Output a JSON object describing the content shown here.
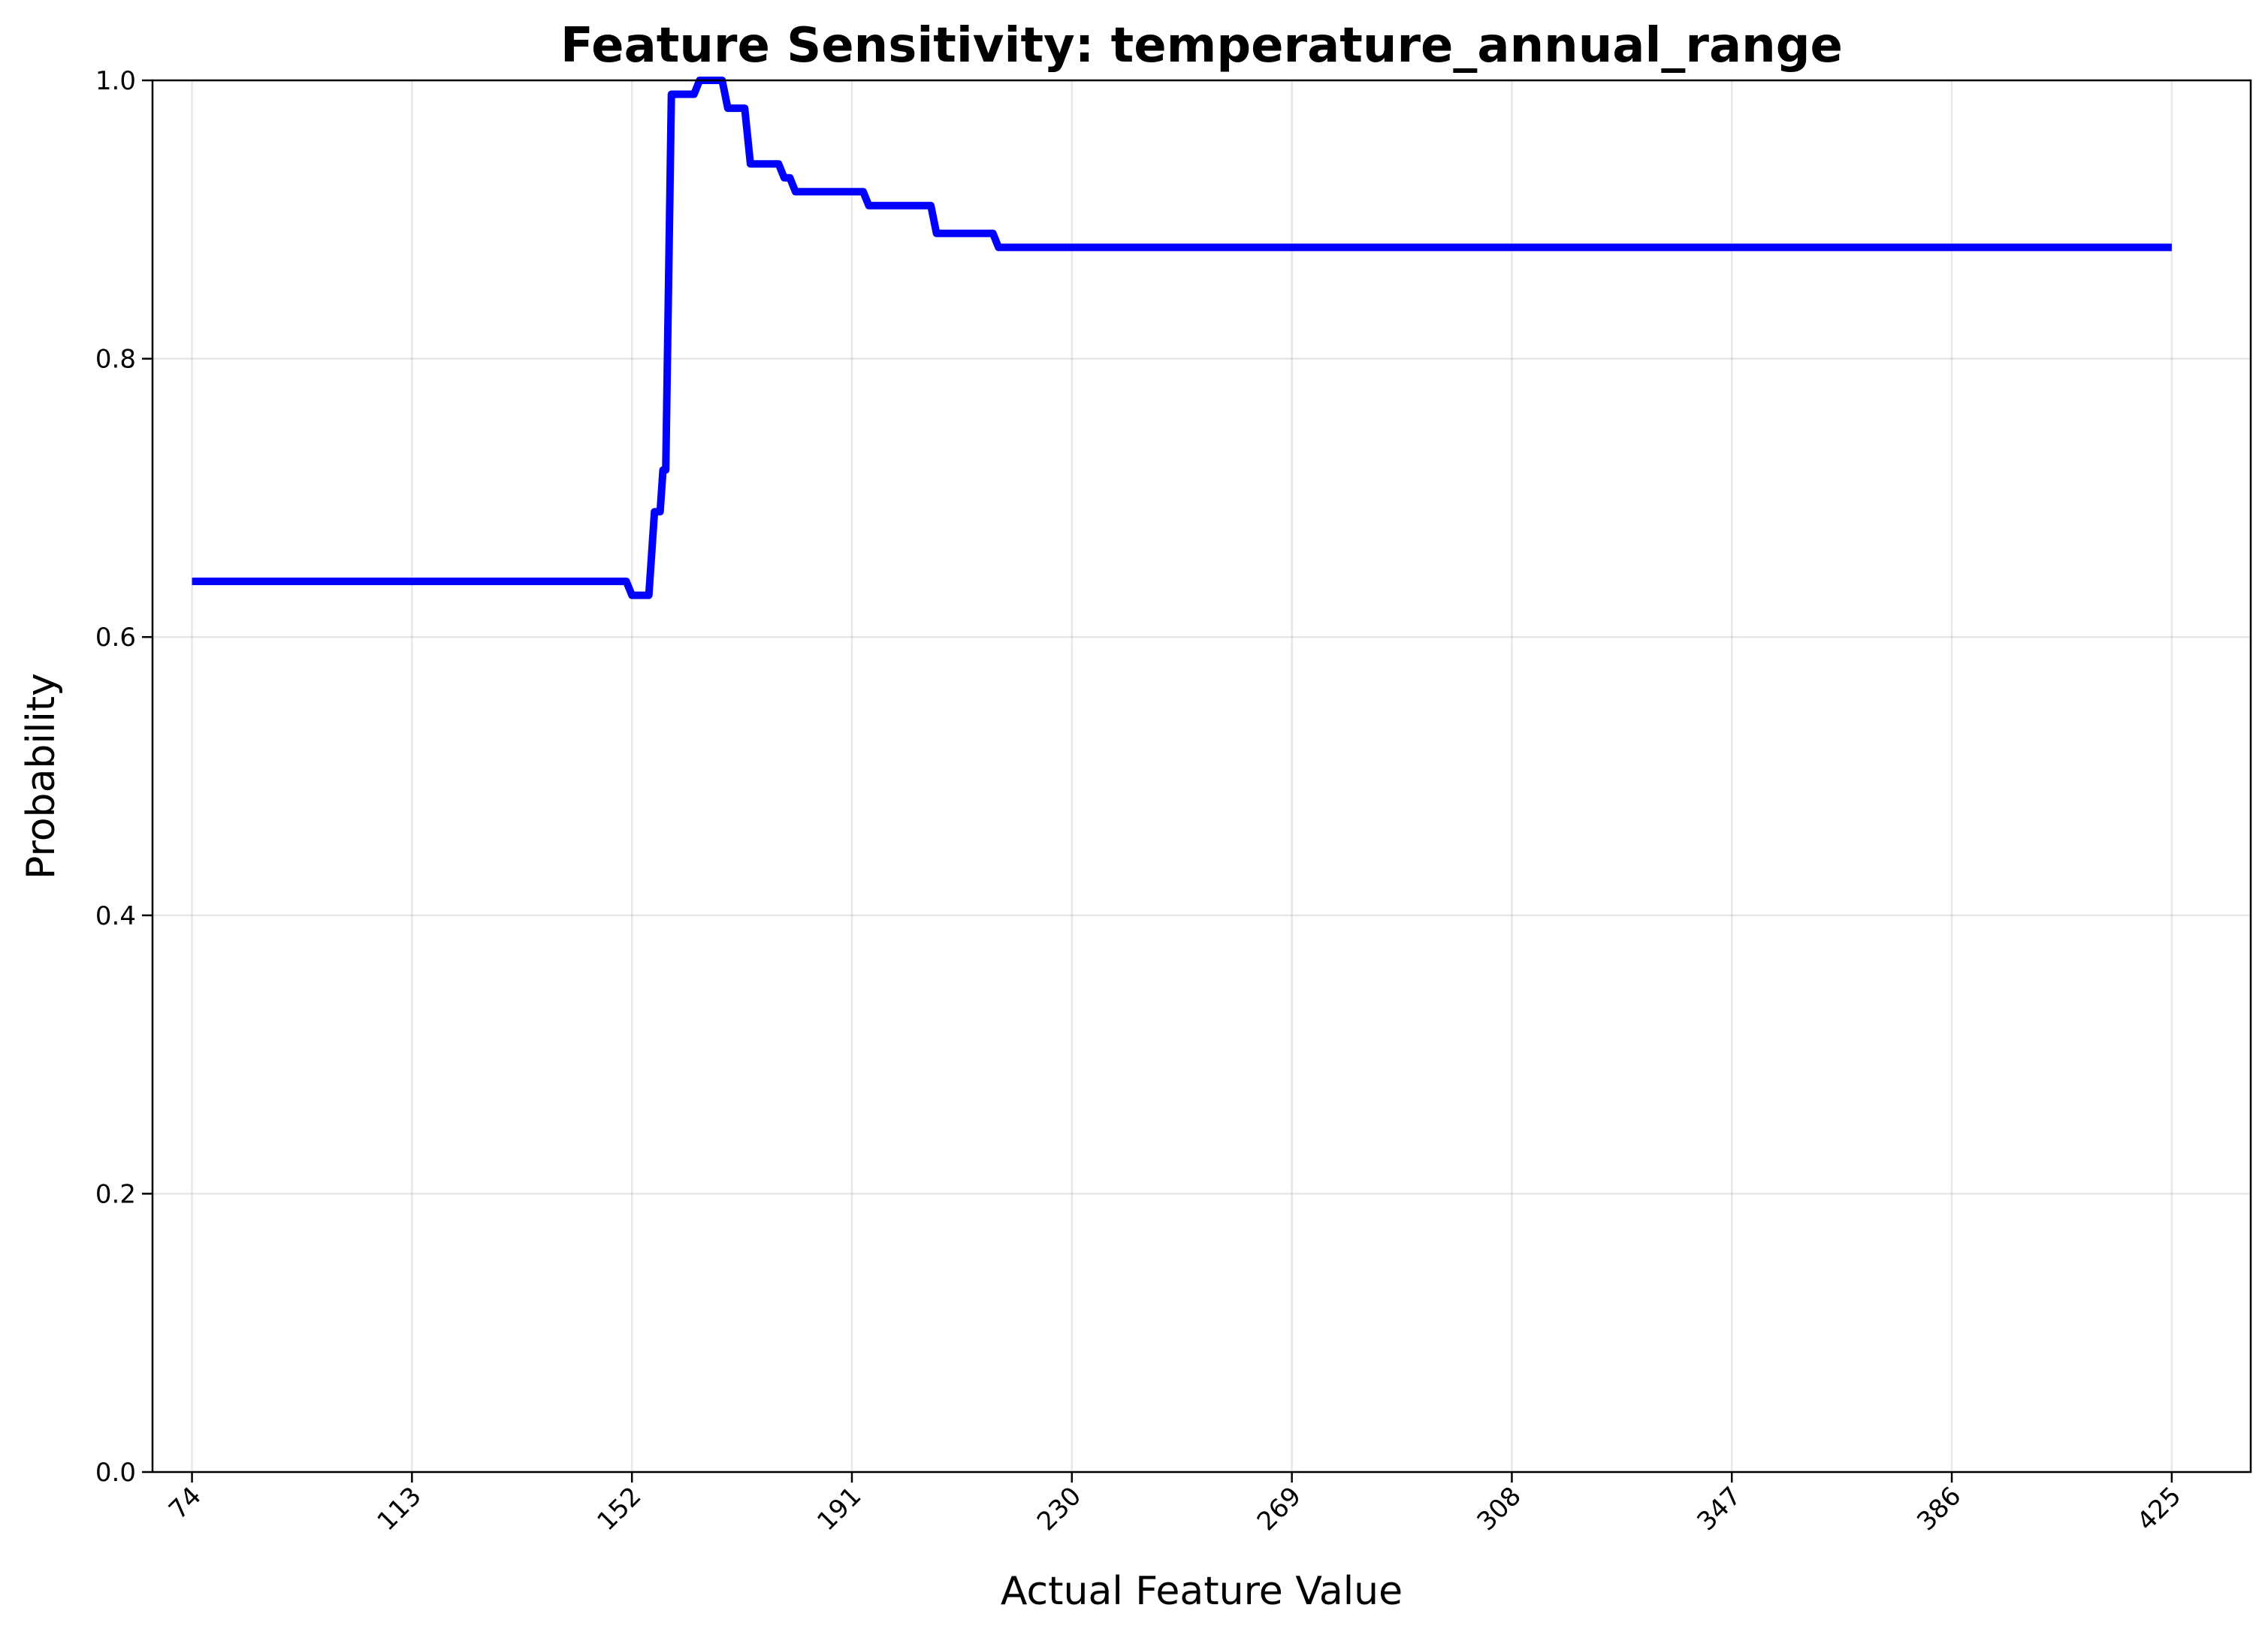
{
  "chart_data": {
    "type": "line",
    "title": "Feature Sensitivity: temperature_annual_range",
    "xlabel": "Actual Feature Value",
    "ylabel": "Probability",
    "xlim": [
      67,
      439
    ],
    "ylim": [
      0.0,
      1.0
    ],
    "x_ticks": [
      "74",
      "113",
      "152",
      "191",
      "230",
      "269",
      "308",
      "347",
      "386",
      "425"
    ],
    "y_ticks": [
      "0.0",
      "0.2",
      "0.4",
      "0.6",
      "0.8",
      "1.0"
    ],
    "grid": true,
    "series": [
      {
        "color": "#0000ff",
        "x": [
          74,
          151,
          152,
          155,
          156,
          157,
          157.5,
          158,
          159,
          160,
          161,
          163,
          164,
          168,
          169,
          172,
          173,
          178,
          179,
          180,
          181,
          193,
          194,
          205,
          206,
          216,
          217,
          425
        ],
        "y": [
          0.64,
          0.64,
          0.63,
          0.63,
          0.69,
          0.69,
          0.72,
          0.72,
          0.99,
          0.99,
          0.99,
          0.99,
          1.0,
          1.0,
          0.98,
          0.98,
          0.94,
          0.94,
          0.93,
          0.93,
          0.92,
          0.92,
          0.91,
          0.91,
          0.89,
          0.89,
          0.88,
          0.88
        ]
      }
    ]
  }
}
